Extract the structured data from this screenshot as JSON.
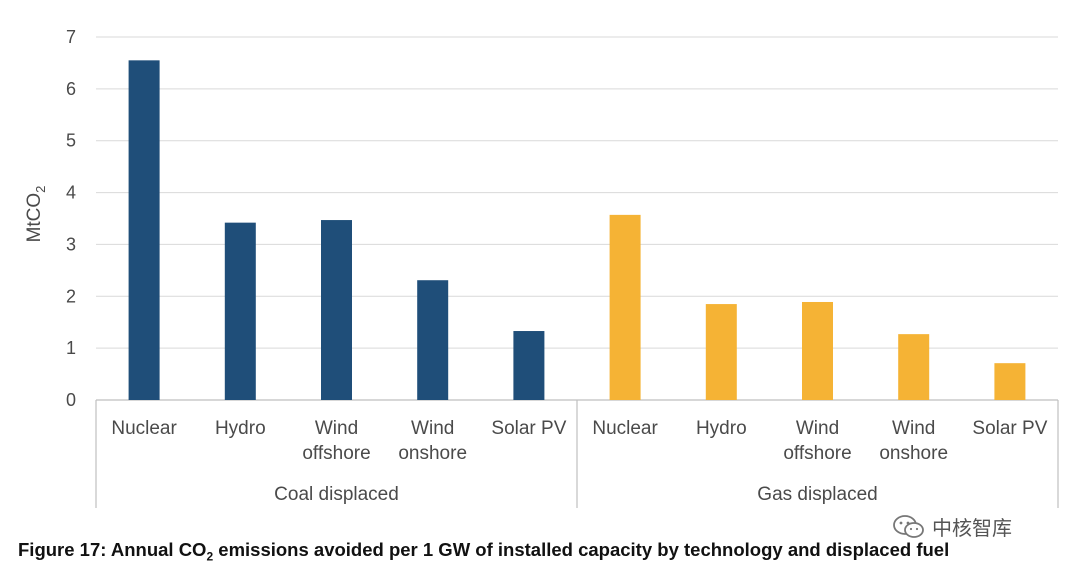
{
  "chart_data": {
    "type": "bar",
    "ylabel_main": "MtCO",
    "ylabel_sub": "2",
    "ylim": [
      0,
      7
    ],
    "yticks": [
      0,
      1,
      2,
      3,
      4,
      5,
      6,
      7
    ],
    "grid": true,
    "groups": [
      {
        "name": "Coal displaced",
        "color": "#1f4e79",
        "categories": [
          [
            "Nuclear"
          ],
          [
            "Hydro"
          ],
          [
            "Wind",
            "offshore"
          ],
          [
            "Wind",
            "onshore"
          ],
          [
            "Solar PV"
          ]
        ],
        "values": [
          6.55,
          3.42,
          3.47,
          2.31,
          1.33
        ]
      },
      {
        "name": "Gas displaced",
        "color": "#f5b335",
        "categories": [
          [
            "Nuclear"
          ],
          [
            "Hydro"
          ],
          [
            "Wind",
            "offshore"
          ],
          [
            "Wind",
            "onshore"
          ],
          [
            "Solar PV"
          ]
        ],
        "values": [
          3.57,
          1.85,
          1.89,
          1.27,
          0.71
        ]
      }
    ]
  },
  "caption": {
    "prefix": "Figure 17: Annual CO",
    "sub": "2",
    "suffix": " emissions avoided per 1 GW of installed capacity by technology and displaced fuel"
  },
  "watermark": {
    "text": "中核智库",
    "icon": "wechat-icon"
  }
}
